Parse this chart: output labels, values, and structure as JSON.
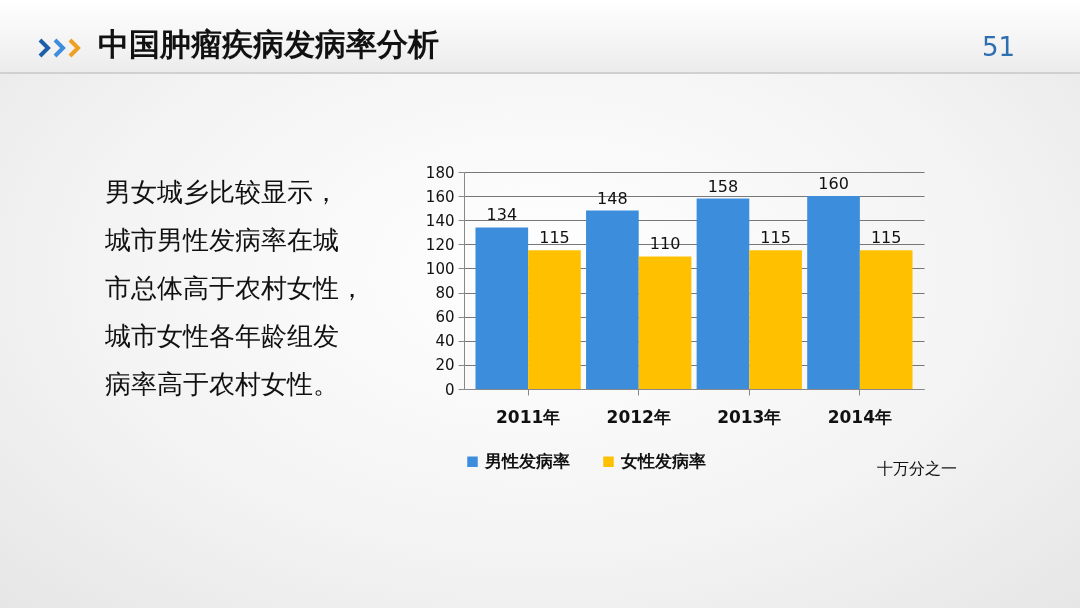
{
  "chart_data": {
    "type": "bar",
    "title": "中国肿瘤疾病发病率分析",
    "categories": [
      "2011年",
      "2012年",
      "2013年",
      "2014年"
    ],
    "series": [
      {
        "name": "男性发病率",
        "color": "#3c8ddc",
        "values": [
          134,
          148,
          158,
          160
        ]
      },
      {
        "name": "女性发病率",
        "color": "#ffc000",
        "values": [
          115,
          110,
          115,
          115
        ]
      }
    ],
    "ylim": [
      0,
      180
    ],
    "yticks": [
      0,
      20,
      40,
      60,
      80,
      100,
      120,
      140,
      160,
      180
    ],
    "grid": "y",
    "legend": "bottom",
    "data_labels": true,
    "annotations": [
      "男女城乡比较显示，城市男性发病率在城市总体高于农村女性，城市女性各年龄组发病率高于农村女性。",
      "十万分之一",
      "51"
    ]
  }
}
